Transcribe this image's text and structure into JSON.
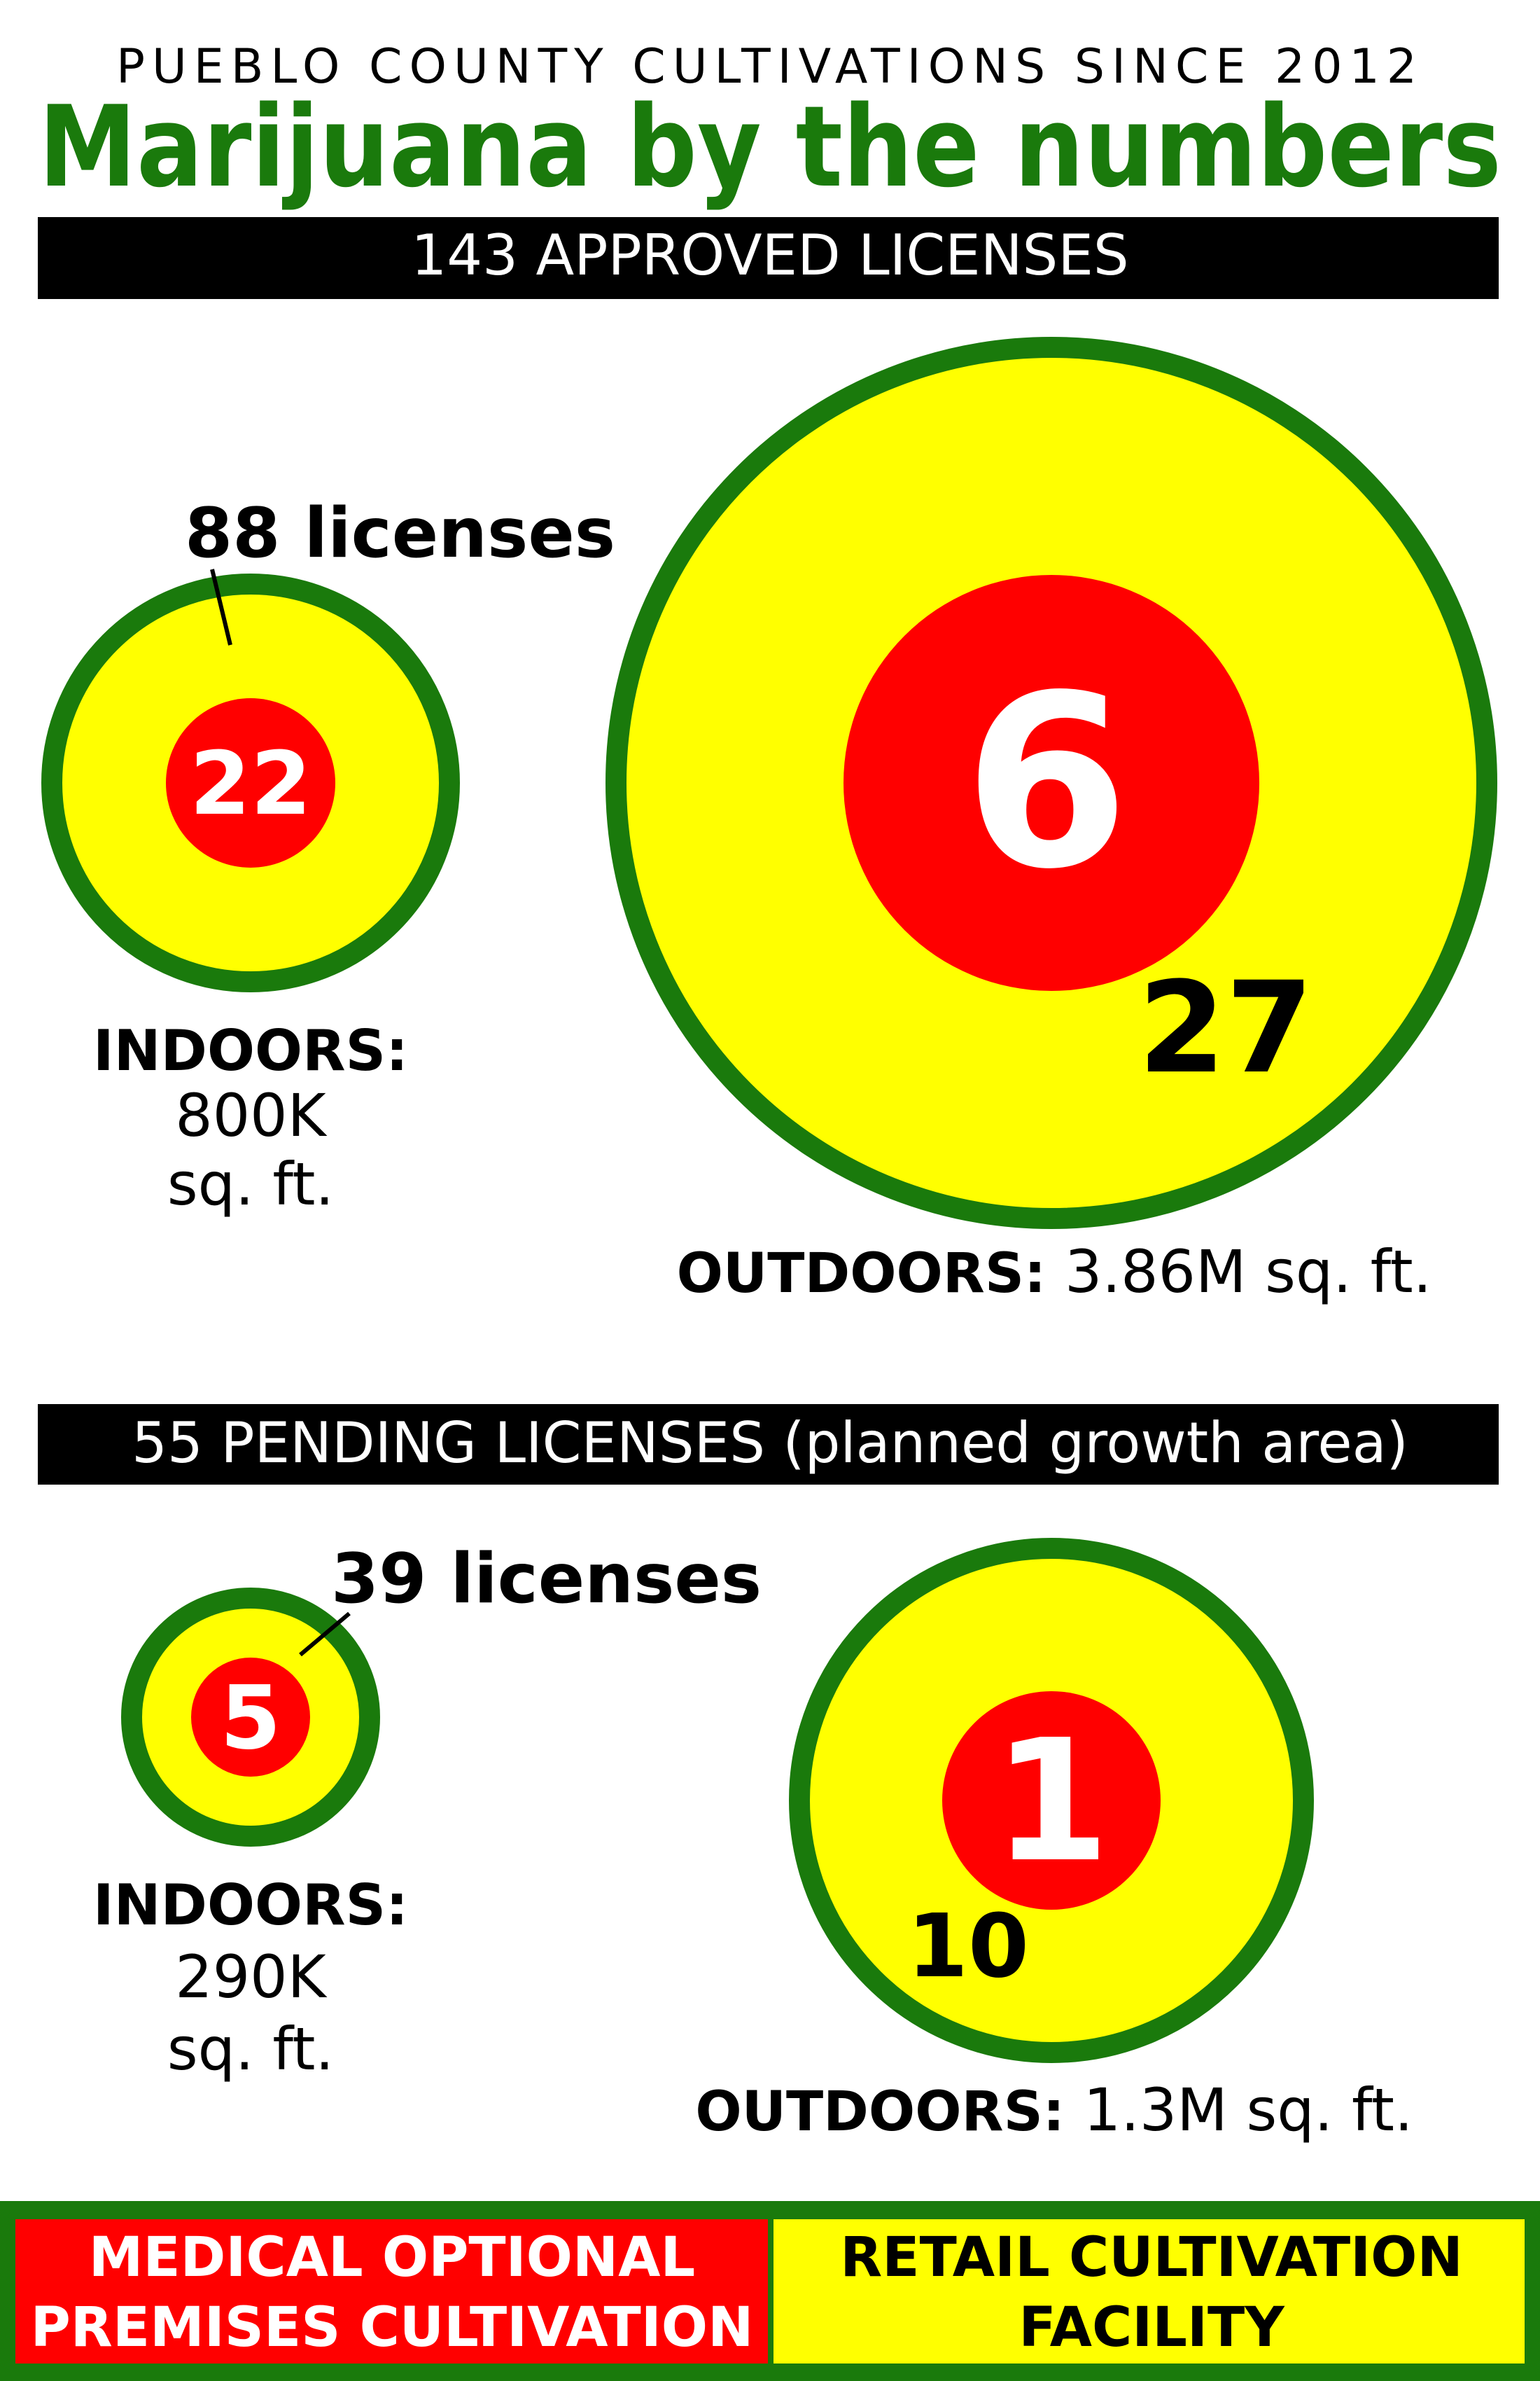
{
  "header": {
    "kicker": "PUEBLO COUNTY CULTIVATIONS SINCE 2012",
    "title": "Marijuana by the numbers"
  },
  "colors": {
    "green": "#1a7a0c",
    "yellow": "#ffff00",
    "red": "#ff0000",
    "black": "#000000"
  },
  "approved": {
    "banner": "143 APPROVED LICENSES",
    "indoor": {
      "licenses_label": "88 licenses",
      "medical_count": "22",
      "label": "INDOORS:",
      "area": "800K",
      "unit": "sq. ft."
    },
    "outdoor": {
      "medical_count": "6",
      "retail_count": "27",
      "label": "OUTDOORS:",
      "area": "3.86M sq. ft."
    }
  },
  "pending": {
    "banner": "55 PENDING LICENSES (planned growth area)",
    "indoor": {
      "licenses_label": "39 licenses",
      "medical_count": "5",
      "label": "INDOORS:",
      "area": "290K",
      "unit": "sq. ft."
    },
    "outdoor": {
      "medical_count": "1",
      "retail_count": "10",
      "label": "OUTDOORS:",
      "area": "1.3M sq. ft."
    }
  },
  "legend": {
    "medical": [
      "MEDICAL OPTIONAL",
      "PREMISES CULTIVATION"
    ],
    "retail": [
      "RETAIL CULTIVATION",
      "FACILITY"
    ]
  }
}
